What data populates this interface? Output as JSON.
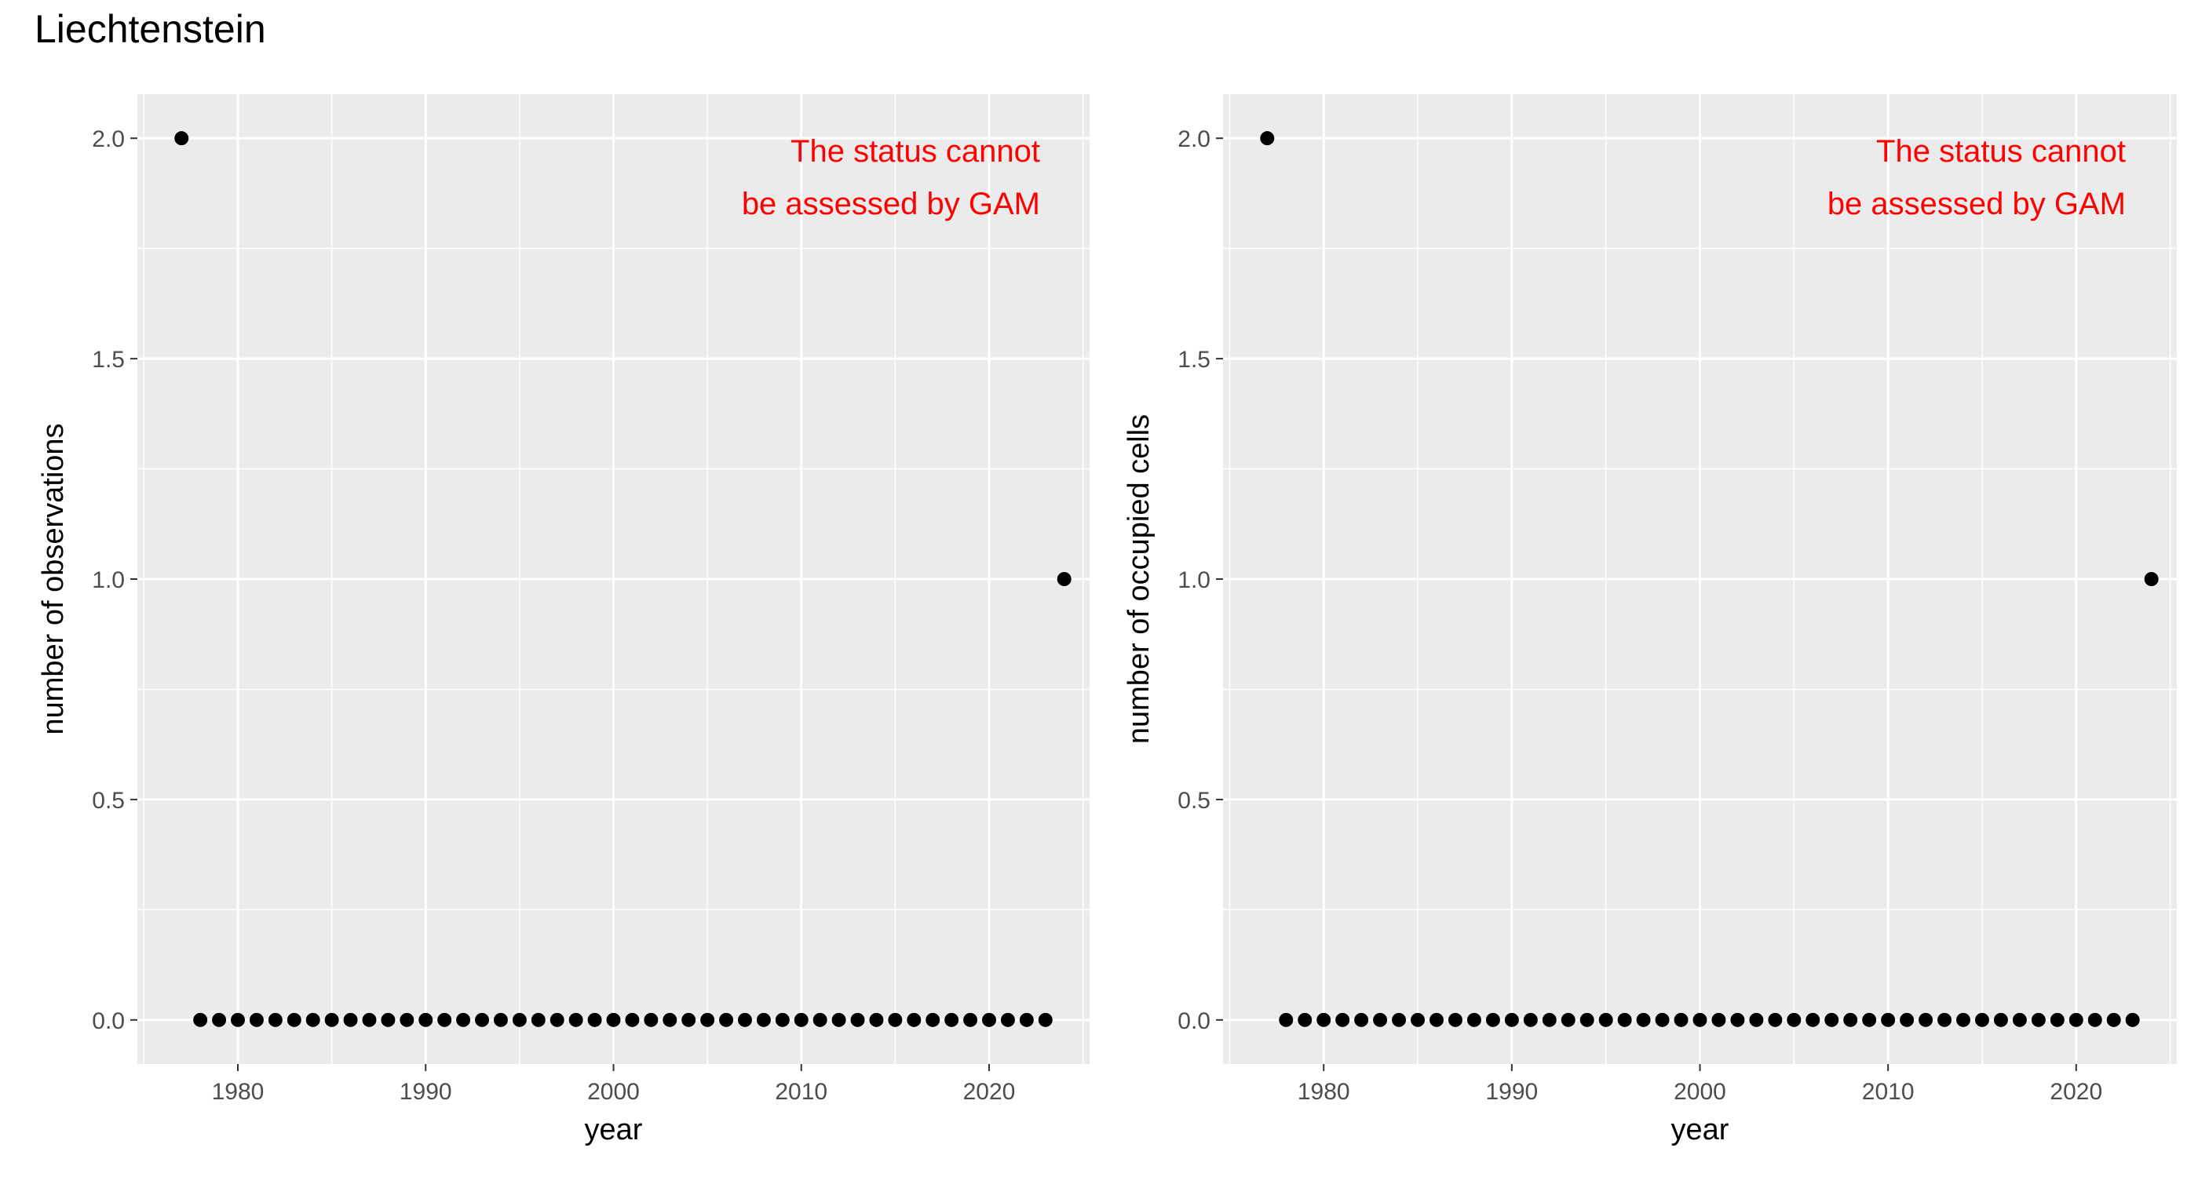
{
  "page_title": "Liechtenstein",
  "chart_data": [
    {
      "type": "scatter",
      "title": "",
      "xlabel": "year",
      "ylabel": "number of observations",
      "x_ticks": [
        1980,
        1990,
        2000,
        2010,
        2020
      ],
      "y_ticks": [
        "0.0",
        "0.5",
        "1.0",
        "1.5",
        "2.0"
      ],
      "xlim": [
        1974.65,
        2025.35
      ],
      "ylim": [
        -0.1,
        2.1
      ],
      "grid": true,
      "annotation": [
        "The status cannot",
        "be assessed by GAM"
      ],
      "annotation_color": "#ff0000",
      "point_color": "#000000",
      "panel_color": "#ebebeb",
      "x": [
        1977,
        1978,
        1979,
        1980,
        1981,
        1982,
        1983,
        1984,
        1985,
        1986,
        1987,
        1988,
        1989,
        1990,
        1991,
        1992,
        1993,
        1994,
        1995,
        1996,
        1997,
        1998,
        1999,
        2000,
        2001,
        2002,
        2003,
        2004,
        2005,
        2006,
        2007,
        2008,
        2009,
        2010,
        2011,
        2012,
        2013,
        2014,
        2015,
        2016,
        2017,
        2018,
        2019,
        2020,
        2021,
        2022,
        2023,
        2024
      ],
      "y": [
        2,
        0,
        0,
        0,
        0,
        0,
        0,
        0,
        0,
        0,
        0,
        0,
        0,
        0,
        0,
        0,
        0,
        0,
        0,
        0,
        0,
        0,
        0,
        0,
        0,
        0,
        0,
        0,
        0,
        0,
        0,
        0,
        0,
        0,
        0,
        0,
        0,
        0,
        0,
        0,
        0,
        0,
        0,
        0,
        0,
        0,
        0,
        1
      ]
    },
    {
      "type": "scatter",
      "title": "",
      "xlabel": "year",
      "ylabel": "number of occupied cells",
      "x_ticks": [
        1980,
        1990,
        2000,
        2010,
        2020
      ],
      "y_ticks": [
        "0.0",
        "0.5",
        "1.0",
        "1.5",
        "2.0"
      ],
      "xlim": [
        1974.65,
        2025.35
      ],
      "ylim": [
        -0.1,
        2.1
      ],
      "grid": true,
      "annotation": [
        "The status cannot",
        "be assessed by GAM"
      ],
      "annotation_color": "#ff0000",
      "point_color": "#000000",
      "panel_color": "#ebebeb",
      "x": [
        1977,
        1978,
        1979,
        1980,
        1981,
        1982,
        1983,
        1984,
        1985,
        1986,
        1987,
        1988,
        1989,
        1990,
        1991,
        1992,
        1993,
        1994,
        1995,
        1996,
        1997,
        1998,
        1999,
        2000,
        2001,
        2002,
        2003,
        2004,
        2005,
        2006,
        2007,
        2008,
        2009,
        2010,
        2011,
        2012,
        2013,
        2014,
        2015,
        2016,
        2017,
        2018,
        2019,
        2020,
        2021,
        2022,
        2023,
        2024
      ],
      "y": [
        2,
        0,
        0,
        0,
        0,
        0,
        0,
        0,
        0,
        0,
        0,
        0,
        0,
        0,
        0,
        0,
        0,
        0,
        0,
        0,
        0,
        0,
        0,
        0,
        0,
        0,
        0,
        0,
        0,
        0,
        0,
        0,
        0,
        0,
        0,
        0,
        0,
        0,
        0,
        0,
        0,
        0,
        0,
        0,
        0,
        0,
        0,
        1
      ]
    }
  ]
}
